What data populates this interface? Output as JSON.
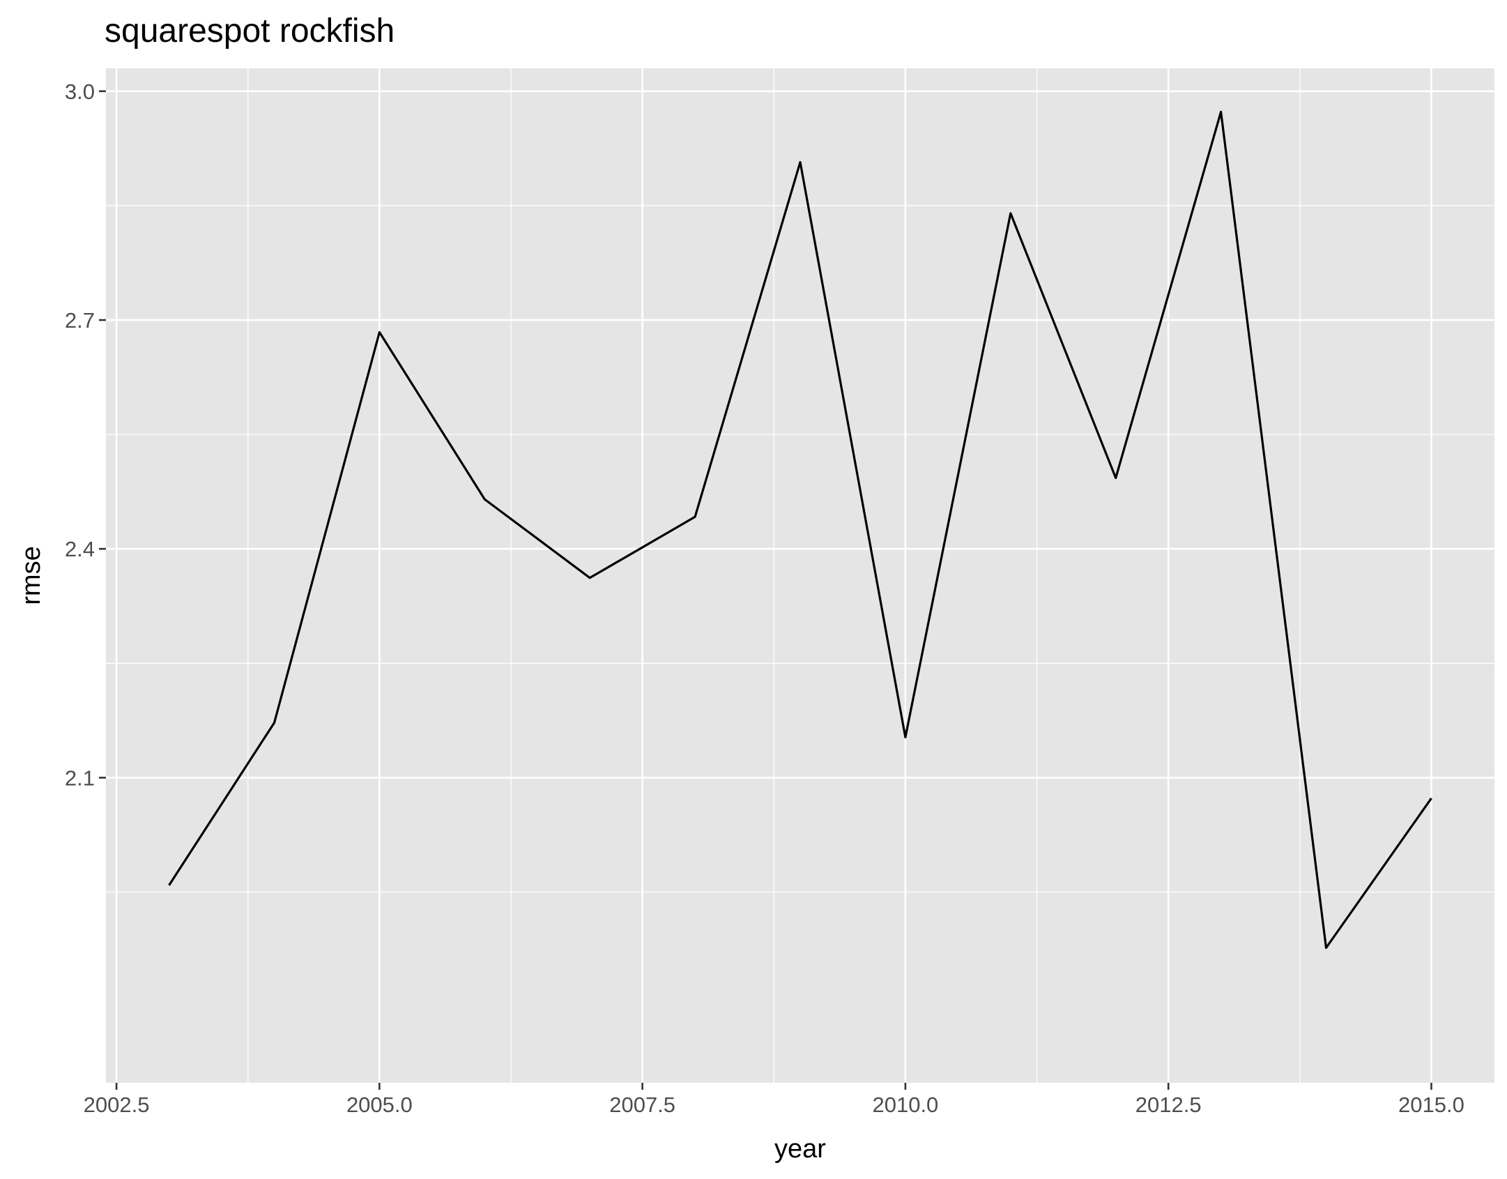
{
  "chart_data": {
    "type": "line",
    "title": "squarespot rockfish",
    "xlabel": "year",
    "ylabel": "rmse",
    "xlim": [
      2002.4,
      2015.6
    ],
    "ylim": [
      1.7,
      3.03
    ],
    "x_ticks": [
      2002.5,
      2005.0,
      2007.5,
      2010.0,
      2012.5,
      2015.0
    ],
    "x_tick_labels": [
      "2002.5",
      "2005.0",
      "2007.5",
      "2010.0",
      "2012.5",
      "2015.0"
    ],
    "y_ticks": [
      2.1,
      2.4,
      2.7,
      3.0
    ],
    "y_tick_labels": [
      "2.1",
      "2.4",
      "2.7",
      "3.0"
    ],
    "grid": true,
    "colors": {
      "panel": "#e5e5e5",
      "grid": "#ffffff",
      "line": "#000000"
    },
    "series": [
      {
        "x": [
          2003,
          2004,
          2005,
          2006,
          2007,
          2008,
          2009,
          2010,
          2011,
          2012,
          2013,
          2014,
          2015
        ],
        "values": [
          1.959,
          2.172,
          2.684,
          2.465,
          2.362,
          2.442,
          2.907,
          2.153,
          2.84,
          2.493,
          2.973,
          1.877,
          2.073
        ]
      }
    ]
  }
}
